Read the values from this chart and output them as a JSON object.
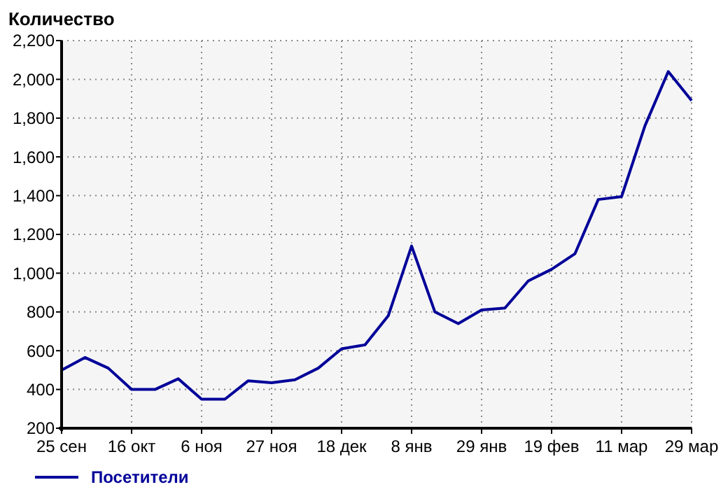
{
  "chart_data": {
    "type": "line",
    "title": "Количество",
    "categories": [
      "25 сен",
      null,
      null,
      "16 окт",
      null,
      null,
      "6 ноя",
      null,
      null,
      "27 ноя",
      null,
      null,
      "18 дек",
      null,
      null,
      "8 янв",
      null,
      null,
      "29 янв",
      null,
      null,
      "19 фев",
      null,
      null,
      "11 мар",
      null,
      null,
      "29 мар"
    ],
    "series": [
      {
        "name": "Посетители",
        "color": "#000099",
        "values": [
          500,
          565,
          510,
          400,
          400,
          455,
          350,
          350,
          445,
          435,
          450,
          510,
          610,
          630,
          780,
          1140,
          800,
          740,
          810,
          820,
          960,
          1020,
          1100,
          1380,
          1395,
          1760,
          2040,
          1890
        ]
      }
    ],
    "ylim": [
      200,
      2200
    ],
    "yticks": [
      200,
      400,
      600,
      800,
      {
        "value": 1000,
        "label": "1,000"
      },
      {
        "value": 1200,
        "label": "1,200"
      },
      {
        "value": 1400,
        "label": "1,400"
      },
      {
        "value": 1600,
        "label": "1,600"
      },
      {
        "value": 1800,
        "label": "1,800"
      },
      {
        "value": 2000,
        "label": "2,000"
      },
      {
        "value": 2200,
        "label": "2,200"
      }
    ],
    "grid": true,
    "legend": "bottom",
    "marker": "none",
    "line_style": "solid"
  }
}
